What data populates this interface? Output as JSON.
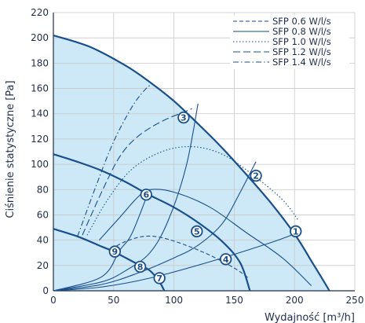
{
  "chart_data": {
    "type": "line",
    "xlabel": "Wydajność [m³/h]",
    "ylabel": "Ciśnienie statystyczne [Pa]",
    "xlim": [
      0,
      250
    ],
    "ylim": [
      0,
      220
    ],
    "x_ticks": [
      "0",
      "50",
      "100",
      "150",
      "200",
      "250"
    ],
    "y_ticks": [
      "0",
      "20",
      "40",
      "60",
      "80",
      "100",
      "120",
      "140",
      "160",
      "180",
      "200",
      "220"
    ],
    "grid": true,
    "legend_position": "top-right",
    "colors": {
      "curve": "#1a4f8c",
      "fill": "#cde9f7",
      "grid": "#c8c8c8",
      "axis": "#1f2d4d"
    },
    "fill_area": [
      [
        0,
        202
      ],
      [
        30,
        193
      ],
      [
        60,
        178
      ],
      [
        80,
        165
      ],
      [
        100,
        150
      ],
      [
        120,
        132
      ],
      [
        140,
        113
      ],
      [
        160,
        92
      ],
      [
        180,
        70
      ],
      [
        200,
        45
      ],
      [
        215,
        22
      ],
      [
        229,
        0
      ],
      [
        0,
        0
      ]
    ],
    "fan_curves": [
      {
        "points": [
          [
            0,
            202
          ],
          [
            30,
            193
          ],
          [
            60,
            178
          ],
          [
            80,
            165
          ],
          [
            100,
            150
          ],
          [
            120,
            132
          ],
          [
            140,
            113
          ],
          [
            160,
            92
          ],
          [
            180,
            70
          ],
          [
            200,
            45
          ],
          [
            215,
            22
          ],
          [
            229,
            0
          ]
        ]
      },
      {
        "points": [
          [
            0,
            108
          ],
          [
            20,
            102
          ],
          [
            40,
            95
          ],
          [
            60,
            86
          ],
          [
            77,
            77
          ],
          [
            100,
            66
          ],
          [
            120,
            54
          ],
          [
            140,
            39
          ],
          [
            155,
            22
          ],
          [
            163,
            0
          ]
        ]
      },
      {
        "points": [
          [
            0,
            49
          ],
          [
            20,
            43
          ],
          [
            40,
            35
          ],
          [
            50,
            31
          ],
          [
            70,
            21
          ],
          [
            80,
            16
          ],
          [
            88,
            7
          ],
          [
            92,
            0
          ]
        ]
      }
    ],
    "system_curves": [
      {
        "points": [
          [
            0,
            0
          ],
          [
            40,
            3
          ],
          [
            80,
            10
          ],
          [
            130,
            23
          ],
          [
            180,
            38
          ],
          [
            203,
            46
          ]
        ]
      },
      {
        "points": [
          [
            0,
            0
          ],
          [
            40,
            5
          ],
          [
            70,
            14
          ],
          [
            100,
            26
          ],
          [
            120,
            36
          ],
          [
            140,
            53
          ],
          [
            155,
            78
          ],
          [
            168,
            102
          ]
        ]
      },
      {
        "points": [
          [
            0,
            0
          ],
          [
            40,
            7
          ],
          [
            60,
            16
          ],
          [
            80,
            30
          ],
          [
            95,
            55
          ],
          [
            110,
            98
          ],
          [
            120,
            148
          ]
        ]
      },
      {
        "points": [
          [
            0,
            0
          ],
          [
            40,
            11
          ],
          [
            55,
            32
          ],
          [
            65,
            45
          ],
          [
            78,
            76
          ]
        ]
      }
    ],
    "series": [
      {
        "name": "SFP 0.6 W/l/s",
        "style": "dashed",
        "points": [
          [
            48,
            33
          ],
          [
            60,
            39
          ],
          [
            75,
            43
          ],
          [
            90,
            42
          ],
          [
            110,
            36
          ],
          [
            130,
            28
          ],
          [
            150,
            18
          ],
          [
            162,
            10
          ]
        ]
      },
      {
        "name": "SFP 0.8 W/l/s",
        "style": "solid",
        "points": [
          [
            38,
            40
          ],
          [
            55,
            58
          ],
          [
            70,
            74
          ],
          [
            80,
            80
          ],
          [
            100,
            78
          ],
          [
            130,
            66
          ],
          [
            160,
            46
          ],
          [
            190,
            26
          ],
          [
            214,
            4
          ]
        ]
      },
      {
        "name": "SFP 1.0 W/l/s",
        "style": "dotted",
        "points": [
          [
            28,
            44
          ],
          [
            45,
            72
          ],
          [
            65,
            96
          ],
          [
            90,
            110
          ],
          [
            115,
            114
          ],
          [
            140,
            108
          ],
          [
            165,
            92
          ],
          [
            190,
            72
          ],
          [
            203,
            56
          ]
        ]
      },
      {
        "name": "SFP 1.2 W/l/s",
        "style": "long-dashed",
        "points": [
          [
            24,
            44
          ],
          [
            40,
            78
          ],
          [
            55,
            106
          ],
          [
            70,
            122
          ],
          [
            90,
            134
          ],
          [
            110,
            142
          ],
          [
            115,
            144
          ]
        ]
      },
      {
        "name": "SFP 1.4 W/l/s",
        "style": "dash-dot",
        "points": [
          [
            20,
            43
          ],
          [
            35,
            82
          ],
          [
            50,
            118
          ],
          [
            65,
            145
          ],
          [
            75,
            158
          ],
          [
            82,
            164
          ]
        ]
      }
    ],
    "markers": [
      {
        "label": "1",
        "x": 201,
        "y": 47
      },
      {
        "label": "2",
        "x": 168,
        "y": 91
      },
      {
        "label": "3",
        "x": 108,
        "y": 137
      },
      {
        "label": "4",
        "x": 143,
        "y": 25
      },
      {
        "label": "5",
        "x": 119,
        "y": 47
      },
      {
        "label": "6",
        "x": 77,
        "y": 76
      },
      {
        "label": "7",
        "x": 88,
        "y": 10
      },
      {
        "label": "8",
        "x": 72,
        "y": 19
      },
      {
        "label": "9",
        "x": 51,
        "y": 31
      }
    ]
  }
}
